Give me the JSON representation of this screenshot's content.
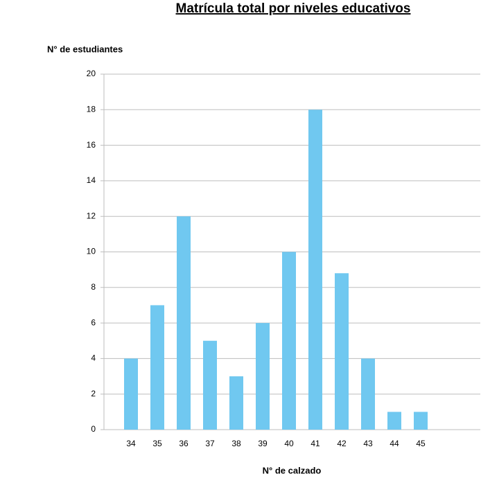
{
  "chart_data": {
    "type": "bar",
    "title": "Matrícula total por niveles educativos",
    "y_label": "N° de estudiantes",
    "x_label": "N° de calzado",
    "categories": [
      "34",
      "35",
      "36",
      "37",
      "38",
      "39",
      "40",
      "41",
      "42",
      "43",
      "44",
      "45"
    ],
    "values": [
      4,
      7,
      12,
      5,
      3,
      6,
      10,
      18,
      8.8,
      4,
      1,
      1
    ],
    "color": "#70c8f0",
    "ylim": [
      0,
      20
    ],
    "yticks": [
      0,
      2,
      4,
      6,
      8,
      10,
      12,
      14,
      16,
      18,
      20
    ],
    "grid": true
  }
}
